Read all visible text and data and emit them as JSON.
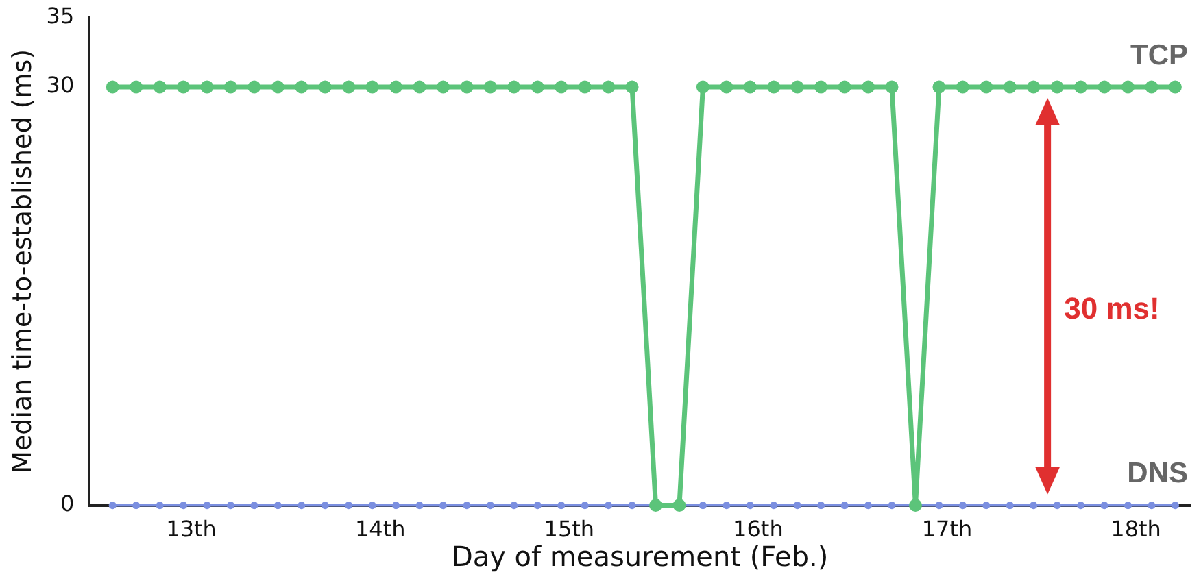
{
  "chart_data": {
    "type": "line",
    "xlabel": "Day of measurement (Feb.)",
    "ylabel": "Median time-to-established (ms)",
    "x": [
      12.583,
      12.708,
      12.833,
      12.958,
      13.083,
      13.208,
      13.333,
      13.458,
      13.583,
      13.708,
      13.833,
      13.958,
      14.083,
      14.208,
      14.333,
      14.458,
      14.583,
      14.708,
      14.833,
      14.958,
      15.083,
      15.208,
      15.333,
      15.458,
      15.583,
      15.708,
      15.833,
      15.958,
      16.083,
      16.208,
      16.333,
      16.458,
      16.583,
      16.708,
      16.833,
      16.958,
      17.083,
      17.208,
      17.333,
      17.458,
      17.583,
      17.708,
      17.833,
      17.958,
      18.083,
      18.208
    ],
    "series": [
      {
        "name": "TCP",
        "color": "#5cc47a",
        "values": [
          30,
          30,
          30,
          30,
          30,
          30,
          30,
          30,
          30,
          30,
          30,
          30,
          30,
          30,
          30,
          30,
          30,
          30,
          30,
          30,
          30,
          30,
          30,
          0,
          0,
          30,
          30,
          30,
          30,
          30,
          30,
          30,
          30,
          30,
          0,
          30,
          30,
          30,
          30,
          30,
          30,
          30,
          30,
          30,
          30,
          30
        ]
      },
      {
        "name": "DNS",
        "color": "#7b8fe0",
        "values": [
          0,
          0,
          0,
          0,
          0,
          0,
          0,
          0,
          0,
          0,
          0,
          0,
          0,
          0,
          0,
          0,
          0,
          0,
          0,
          0,
          0,
          0,
          0,
          0,
          0,
          0,
          0,
          0,
          0,
          0,
          0,
          0,
          0,
          0,
          0,
          0,
          0,
          0,
          0,
          0,
          0,
          0,
          0,
          0,
          0,
          0
        ]
      }
    ],
    "xlim": [
      12.46,
      18.29
    ],
    "xticks": [
      {
        "value": 13,
        "label": "13th"
      },
      {
        "value": 14,
        "label": "14th"
      },
      {
        "value": 15,
        "label": "15th"
      },
      {
        "value": 16,
        "label": "16th"
      },
      {
        "value": 17,
        "label": "17th"
      },
      {
        "value": 18,
        "label": "18th"
      }
    ],
    "ylim": [
      0,
      35
    ],
    "yticks": [
      0,
      30,
      35
    ],
    "grid": false,
    "legend": false,
    "marker": "circle",
    "line_style": "solid",
    "annotations": [
      "30 ms!"
    ]
  }
}
